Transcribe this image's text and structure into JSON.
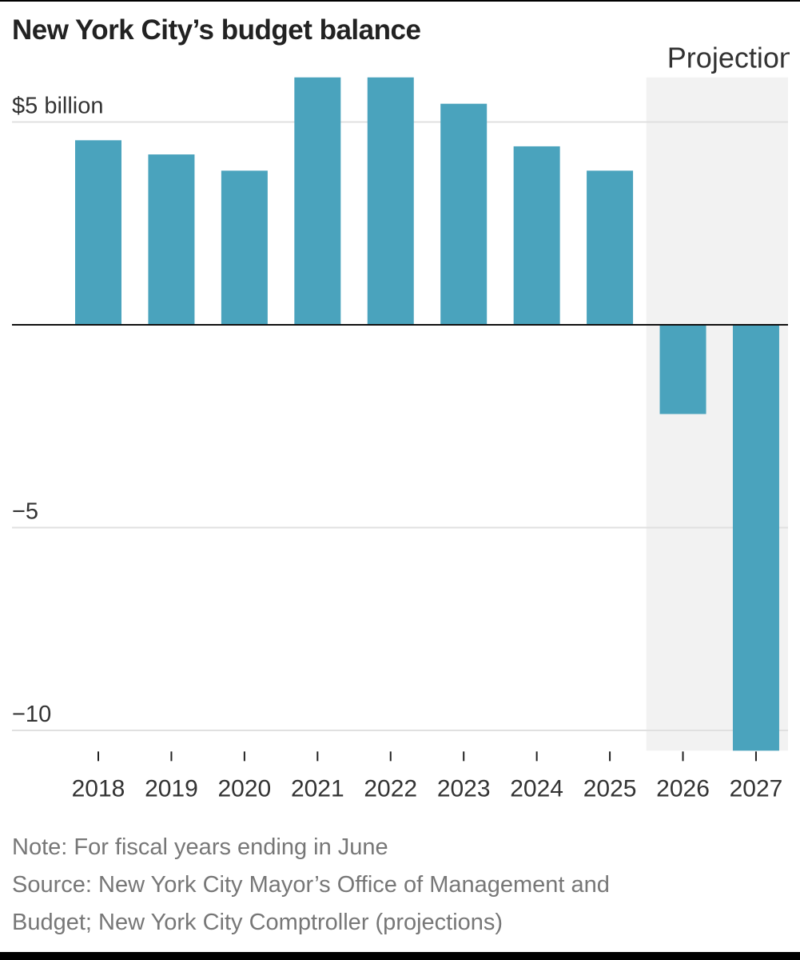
{
  "chart_data": {
    "type": "bar",
    "title": "New York City’s budget balance",
    "ylabel": "",
    "xlabel": "",
    "y_tick_labels": [
      {
        "value": 5,
        "label": "$5 billion"
      },
      {
        "value": -5,
        "label": "−5"
      },
      {
        "value": -10,
        "label": "−10"
      }
    ],
    "ylim": [
      -10.5,
      6.1
    ],
    "categories": [
      "2018",
      "2019",
      "2020",
      "2021",
      "2022",
      "2023",
      "2024",
      "2025",
      "2026",
      "2027"
    ],
    "values": [
      4.55,
      4.2,
      3.8,
      6.1,
      6.1,
      5.45,
      4.4,
      3.8,
      -2.2,
      -10.5
    ],
    "projection_label": "Projections",
    "projection_start_index": 8,
    "bar_color": "#4aa3bd",
    "projection_shade_color": "#f2f2f2",
    "gridline_color": "#e0e0e0"
  },
  "notes": {
    "note": "Note: For fiscal years ending in June",
    "source_line1": "Source: New York City Mayor’s Office of Management and",
    "source_line2": "Budget; New York City Comptroller (projections)"
  }
}
